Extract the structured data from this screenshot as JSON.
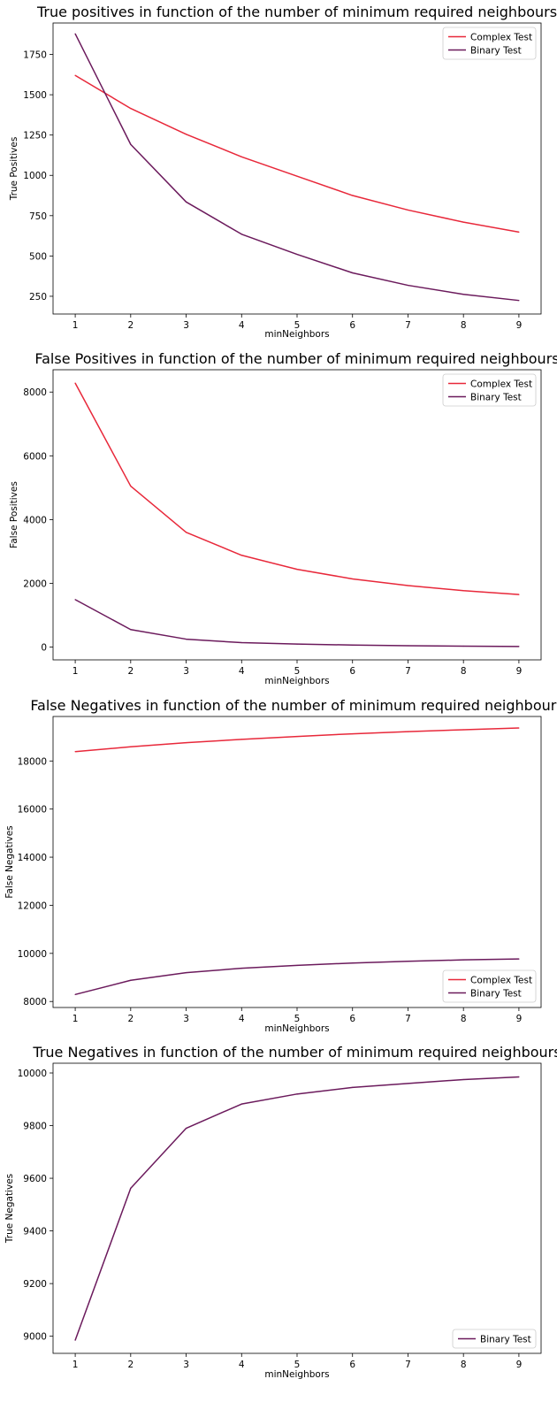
{
  "colors": {
    "complex": "#e8283a",
    "binary": "#6b1a5c",
    "axis": "#000000",
    "legend_border": "#cccccc"
  },
  "chart_data": [
    {
      "type": "line",
      "title": "True positives in function of the number of minimum required neighbours",
      "xlabel": "minNeighbors",
      "ylabel": "True Positives",
      "x": [
        1,
        2,
        3,
        4,
        5,
        6,
        7,
        8,
        9
      ],
      "xticks": [
        "1",
        "2",
        "3",
        "4",
        "5",
        "6",
        "7",
        "8",
        "9"
      ],
      "yticks": [
        "250",
        "500",
        "750",
        "1000",
        "1250",
        "1500",
        "1750"
      ],
      "ylim": [
        140,
        1945
      ],
      "grid": false,
      "legend_position": "top-right",
      "series": [
        {
          "name": "Complex Test",
          "color_key": "complex",
          "values": [
            1620,
            1415,
            1255,
            1115,
            995,
            875,
            785,
            710,
            648
          ]
        },
        {
          "name": "Binary Test",
          "color_key": "binary",
          "values": [
            1878,
            1192,
            835,
            635,
            510,
            395,
            318,
            262,
            224
          ]
        }
      ]
    },
    {
      "type": "line",
      "title": "False Positives in function of the number of minimum required neighbours",
      "xlabel": "minNeighbors",
      "ylabel": "False Positives",
      "x": [
        1,
        2,
        3,
        4,
        5,
        6,
        7,
        8,
        9
      ],
      "xticks": [
        "1",
        "2",
        "3",
        "4",
        "5",
        "6",
        "7",
        "8",
        "9"
      ],
      "yticks": [
        "0",
        "2000",
        "4000",
        "6000",
        "8000"
      ],
      "ylim": [
        -400,
        8700
      ],
      "grid": false,
      "legend_position": "top-right",
      "series": [
        {
          "name": "Complex Test",
          "color_key": "complex",
          "values": [
            8280,
            5050,
            3600,
            2880,
            2440,
            2140,
            1930,
            1770,
            1650
          ]
        },
        {
          "name": "Binary Test",
          "color_key": "binary",
          "values": [
            1490,
            550,
            250,
            140,
            95,
            65,
            45,
            30,
            20
          ]
        }
      ]
    },
    {
      "type": "line",
      "title": "False Negatives in function of the number of minimum required neighbours",
      "xlabel": "minNeighbors",
      "ylabel": "False Negatives",
      "x": [
        1,
        2,
        3,
        4,
        5,
        6,
        7,
        8,
        9
      ],
      "xticks": [
        "1",
        "2",
        "3",
        "4",
        "5",
        "6",
        "7",
        "8",
        "9"
      ],
      "yticks": [
        "8000",
        "10000",
        "12000",
        "14000",
        "16000",
        "18000"
      ],
      "ylim": [
        7750,
        19850
      ],
      "grid": false,
      "legend_position": "bottom-right",
      "series": [
        {
          "name": "Complex Test",
          "color_key": "complex",
          "values": [
            18390,
            18590,
            18760,
            18900,
            19020,
            19130,
            19220,
            19300,
            19370
          ]
        },
        {
          "name": "Binary Test",
          "color_key": "binary",
          "values": [
            8290,
            8880,
            9200,
            9380,
            9500,
            9600,
            9670,
            9730,
            9770
          ]
        }
      ]
    },
    {
      "type": "line",
      "title": "True Negatives in function of the number of minimum required neighbours",
      "xlabel": "minNeighbors",
      "ylabel": "True Negatives",
      "x": [
        1,
        2,
        3,
        4,
        5,
        6,
        7,
        8,
        9
      ],
      "xticks": [
        "1",
        "2",
        "3",
        "4",
        "5",
        "6",
        "7",
        "8",
        "9"
      ],
      "yticks": [
        "9000",
        "9200",
        "9400",
        "9600",
        "9800",
        "10000"
      ],
      "ylim": [
        8935,
        10037
      ],
      "grid": false,
      "legend_position": "bottom-right",
      "series": [
        {
          "name": "Binary Test",
          "color_key": "binary",
          "values": [
            8985,
            9562,
            9790,
            9882,
            9920,
            9945,
            9960,
            9975,
            9985
          ]
        }
      ]
    }
  ]
}
